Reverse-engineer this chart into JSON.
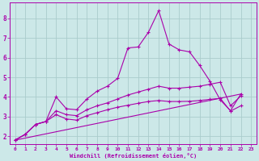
{
  "background_color": "#cce8e8",
  "grid_color": "#aacccc",
  "line_color": "#aa00aa",
  "xlabel": "Windchill (Refroidissement éolien,°C)",
  "ylabel_ticks": [
    2,
    3,
    4,
    5,
    6,
    7,
    8
  ],
  "xlim": [
    -0.5,
    23.5
  ],
  "ylim": [
    1.6,
    8.8
  ],
  "xtick_labels": [
    "0",
    "1",
    "2",
    "3",
    "4",
    "5",
    "6",
    "7",
    "8",
    "9",
    "10",
    "11",
    "12",
    "13",
    "14",
    "15",
    "16",
    "17",
    "18",
    "19",
    "20",
    "21",
    "22",
    "23"
  ],
  "series": [
    {
      "x": [
        0,
        1,
        2,
        3,
        4,
        5,
        6,
        7,
        8,
        9,
        10,
        11,
        12,
        13,
        14,
        15,
        16,
        17,
        18,
        19,
        20,
        21,
        22
      ],
      "y": [
        1.8,
        2.1,
        2.6,
        2.75,
        4.0,
        3.4,
        3.35,
        3.9,
        4.3,
        4.55,
        4.95,
        6.5,
        6.55,
        7.3,
        8.4,
        6.7,
        6.4,
        6.3,
        5.6,
        4.8,
        3.85,
        3.3,
        4.15
      ]
    },
    {
      "x": [
        0,
        1,
        2,
        3,
        4,
        5,
        6,
        7,
        8,
        9,
        10,
        11,
        12,
        13,
        14,
        15,
        16,
        17,
        18,
        19,
        20,
        21,
        22
      ],
      "y": [
        1.8,
        2.1,
        2.6,
        2.75,
        3.3,
        3.1,
        3.05,
        3.35,
        3.55,
        3.7,
        3.9,
        4.1,
        4.25,
        4.4,
        4.55,
        4.45,
        4.45,
        4.5,
        4.55,
        4.65,
        4.75,
        3.55,
        4.05
      ]
    },
    {
      "x": [
        0,
        1,
        2,
        3,
        4,
        5,
        6,
        7,
        8,
        9,
        10,
        11,
        12,
        13,
        14,
        15,
        16,
        17,
        18,
        19,
        20,
        21,
        22
      ],
      "y": [
        1.8,
        2.1,
        2.6,
        2.75,
        3.1,
        2.88,
        2.82,
        3.05,
        3.2,
        3.35,
        3.48,
        3.58,
        3.68,
        3.77,
        3.82,
        3.77,
        3.77,
        3.78,
        3.82,
        3.88,
        3.93,
        3.28,
        3.55
      ]
    },
    {
      "x": [
        0,
        22
      ],
      "y": [
        1.8,
        4.15
      ]
    }
  ]
}
